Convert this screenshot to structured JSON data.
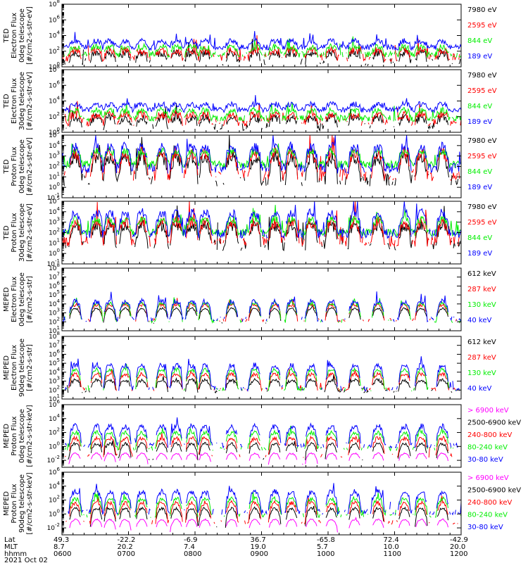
{
  "chart_data": {
    "type": "line",
    "title": "",
    "date_label": "2021 Oct 02",
    "footer": {
      "row_labels": [
        "Lat",
        "MLT",
        "hhmm"
      ],
      "columns": [
        {
          "lat": "49.3",
          "mlt": "8.7",
          "hhmm": "0600"
        },
        {
          "lat": "-22.2",
          "mlt": "20.2",
          "hhmm": "0700"
        },
        {
          "lat": "-6.9",
          "mlt": "7.4",
          "hhmm": "0800"
        },
        {
          "lat": "36.7",
          "mlt": "19.0",
          "hhmm": "0900"
        },
        {
          "lat": "-65.8",
          "mlt": "5.7",
          "hhmm": "1000"
        },
        {
          "lat": "72.4",
          "mlt": "10.0",
          "hhmm": "1100"
        },
        {
          "lat": "-42.9",
          "mlt": "20.0",
          "hhmm": "1200"
        }
      ]
    },
    "x_range_hours": [
      6.0,
      12.0
    ],
    "colors": {
      "black": "#000000",
      "red": "#ff0000",
      "green": "#00ee00",
      "blue": "#0000ff",
      "magenta": "#ff00ff"
    },
    "passes": [
      6.2,
      6.52,
      6.72,
      6.95,
      7.2,
      7.5,
      7.72,
      7.95,
      8.15,
      8.55,
      8.9,
      9.2,
      9.45,
      9.75,
      10.05,
      10.4,
      10.75,
      11.15,
      11.4,
      11.72
    ],
    "panels": [
      {
        "ylabel": [
          "TED",
          "Electron Flux",
          "0deg telescope",
          "[#/cm2-s-str-eV]"
        ],
        "ylog": [
          0,
          8
        ],
        "ticks": [
          0,
          2,
          4,
          6,
          8
        ],
        "legend": [
          {
            "label": "7980 eV",
            "color": "black"
          },
          {
            "label": "2595 eV",
            "color": "red"
          },
          {
            "label": "844 eV",
            "color": "green"
          },
          {
            "label": "189 eV",
            "color": "blue"
          }
        ],
        "series": [
          {
            "name": "7980 eV",
            "color": "black",
            "base": 0.6,
            "peak": 1.8,
            "noise": 0.5,
            "sparse": 0.65
          },
          {
            "name": "2595 eV",
            "color": "red",
            "base": 1.2,
            "peak": 2.1,
            "noise": 0.5,
            "sparse": 0.4
          },
          {
            "name": "844 eV",
            "color": "green",
            "base": 1.6,
            "peak": 2.6,
            "noise": 0.4,
            "sparse": 0.2
          },
          {
            "name": "189 eV",
            "color": "blue",
            "base": 2.5,
            "peak": 3.3,
            "noise": 0.35,
            "sparse": 0.0
          }
        ]
      },
      {
        "ylabel": [
          "TED",
          "Electron Flux",
          "30deg telescope",
          "[#/cm2-s-str-eV]"
        ],
        "ylog": [
          0,
          8
        ],
        "ticks": [
          0,
          2,
          4,
          6,
          8
        ],
        "legend": [
          {
            "label": "7980 eV",
            "color": "black"
          },
          {
            "label": "2595 eV",
            "color": "red"
          },
          {
            "label": "844 eV",
            "color": "green"
          },
          {
            "label": "189 eV",
            "color": "blue"
          }
        ],
        "series": [
          {
            "name": "7980 eV",
            "color": "black",
            "base": 0.7,
            "peak": 1.9,
            "noise": 0.5,
            "sparse": 0.55
          },
          {
            "name": "2595 eV",
            "color": "red",
            "base": 1.3,
            "peak": 2.3,
            "noise": 0.5,
            "sparse": 0.35
          },
          {
            "name": "844 eV",
            "color": "green",
            "base": 1.8,
            "peak": 2.8,
            "noise": 0.4,
            "sparse": 0.15
          },
          {
            "name": "189 eV",
            "color": "blue",
            "base": 2.9,
            "peak": 3.6,
            "noise": 0.35,
            "sparse": 0.0
          }
        ]
      },
      {
        "ylabel": [
          "TED",
          "Proton Flux",
          "0deg telescope",
          "[#/cm2-s-str-eV]"
        ],
        "ylog": [
          -1,
          5
        ],
        "ticks": [
          -1,
          0,
          1,
          2,
          3,
          4,
          5
        ],
        "legend": [
          {
            "label": "7980 eV",
            "color": "black"
          },
          {
            "label": "2595 eV",
            "color": "red"
          },
          {
            "label": "844 eV",
            "color": "green"
          },
          {
            "label": "189 eV",
            "color": "blue"
          }
        ],
        "series": [
          {
            "name": "7980 eV",
            "color": "black",
            "base": 0.7,
            "peak": 2.9,
            "noise": 0.6,
            "sparse": 0.5
          },
          {
            "name": "2595 eV",
            "color": "red",
            "base": 1.2,
            "peak": 3.3,
            "noise": 0.6,
            "sparse": 0.35
          },
          {
            "name": "844 eV",
            "color": "green",
            "base": 2.2,
            "peak": 3.5,
            "noise": 0.35,
            "sparse": 0.0
          },
          {
            "name": "189 eV",
            "color": "blue",
            "base": 1.8,
            "peak": 3.9,
            "noise": 0.5,
            "sparse": 0.1
          }
        ]
      },
      {
        "ylabel": [
          "TED",
          "Proton Flux",
          "30deg telescope",
          "[#/cm2-s-str-eV]"
        ],
        "ylog": [
          -1,
          5
        ],
        "ticks": [
          -1,
          0,
          1,
          2,
          3,
          4,
          5
        ],
        "legend": [
          {
            "label": "7980 eV",
            "color": "black"
          },
          {
            "label": "2595 eV",
            "color": "red"
          },
          {
            "label": "844 eV",
            "color": "green"
          },
          {
            "label": "189 eV",
            "color": "blue"
          }
        ],
        "series": [
          {
            "name": "7980 eV",
            "color": "black",
            "base": 0.8,
            "peak": 2.7,
            "noise": 0.55,
            "sparse": 0.45
          },
          {
            "name": "2595 eV",
            "color": "red",
            "base": 1.2,
            "peak": 3.0,
            "noise": 0.55,
            "sparse": 0.3
          },
          {
            "name": "844 eV",
            "color": "green",
            "base": 2.0,
            "peak": 3.3,
            "noise": 0.35,
            "sparse": 0.0
          },
          {
            "name": "189 eV",
            "color": "blue",
            "base": 1.9,
            "peak": 3.9,
            "noise": 0.45,
            "sparse": 0.1
          }
        ]
      },
      {
        "ylabel": [
          "MEPED",
          "Electron Flux",
          "0deg telescope",
          "[#/cm2-s-str]"
        ],
        "ylog": [
          1,
          8
        ],
        "ticks": [
          1,
          2,
          3,
          4,
          5,
          6,
          7,
          8
        ],
        "legend": [
          {
            "label": "612 keV",
            "color": "black"
          },
          {
            "label": "287 keV",
            "color": "red"
          },
          {
            "label": "130 keV",
            "color": "green"
          },
          {
            "label": "40 keV",
            "color": "blue"
          }
        ],
        "series": [
          {
            "name": "612 keV",
            "color": "black",
            "base": 1.9,
            "peak": 3.5,
            "noise": 0.1,
            "sparse": 0.85
          },
          {
            "name": "287 keV",
            "color": "red",
            "base": 2.2,
            "peak": 3.9,
            "noise": 0.2,
            "sparse": 0.6
          },
          {
            "name": "130 keV",
            "color": "green",
            "base": 2.1,
            "peak": 4.1,
            "noise": 0.2,
            "sparse": 0.6
          },
          {
            "name": "40 keV",
            "color": "blue",
            "base": 2.3,
            "peak": 4.3,
            "noise": 0.3,
            "sparse": 0.5
          }
        ]
      },
      {
        "ylabel": [
          "MEPED",
          "Electron Flux",
          "90deg telescope",
          "[#/cm2-s-str]"
        ],
        "ylog": [
          1,
          8
        ],
        "ticks": [
          1,
          2,
          3,
          4,
          5,
          6,
          7,
          8
        ],
        "legend": [
          {
            "label": "612 keV",
            "color": "black"
          },
          {
            "label": "287 keV",
            "color": "red"
          },
          {
            "label": "130 keV",
            "color": "green"
          },
          {
            "label": "40 keV",
            "color": "blue"
          }
        ],
        "series": [
          {
            "name": "612 keV",
            "color": "black",
            "base": 1.9,
            "peak": 3.1,
            "noise": 0.2,
            "sparse": 0.6
          },
          {
            "name": "287 keV",
            "color": "red",
            "base": 2.1,
            "peak": 3.8,
            "noise": 0.2,
            "sparse": 0.5
          },
          {
            "name": "130 keV",
            "color": "green",
            "base": 2.1,
            "peak": 4.3,
            "noise": 0.2,
            "sparse": 0.5
          },
          {
            "name": "40 keV",
            "color": "blue",
            "base": 2.2,
            "peak": 4.8,
            "noise": 0.3,
            "sparse": 0.5
          }
        ]
      },
      {
        "ylabel": [
          "MEPED",
          "Proton Flux",
          "0deg telescope",
          "[#/cm2-s-str-keV]"
        ],
        "ylog": [
          -3,
          6
        ],
        "ticks": [
          -2,
          0,
          2,
          4,
          6
        ],
        "legend": [
          {
            "label": "> 6900 keV",
            "color": "magenta"
          },
          {
            "label": "2500-6900 keV",
            "color": "black"
          },
          {
            "label": "240-800 keV",
            "color": "red"
          },
          {
            "label": "80-240 keV",
            "color": "green"
          },
          {
            "label": "30-80 keV",
            "color": "blue"
          }
        ],
        "series": [
          {
            "name": "> 6900 keV",
            "color": "magenta",
            "base": -2.6,
            "peak": -1.0,
            "noise": 0.1,
            "sparse": 0.95
          },
          {
            "name": "2500-6900 keV",
            "color": "black",
            "base": -1.8,
            "peak": 0.4,
            "noise": 0.2,
            "sparse": 0.85
          },
          {
            "name": "240-800 keV",
            "color": "red",
            "base": -1.3,
            "peak": 1.2,
            "noise": 0.3,
            "sparse": 0.7
          },
          {
            "name": "80-240 keV",
            "color": "green",
            "base": -0.3,
            "peak": 2.0,
            "noise": 0.3,
            "sparse": 0.55
          },
          {
            "name": "30-80 keV",
            "color": "blue",
            "base": 0.2,
            "peak": 2.9,
            "noise": 0.4,
            "sparse": 0.45
          }
        ]
      },
      {
        "ylabel": [
          "MEPED",
          "Proton Flux",
          "90deg telescope",
          "[#/cm2-s-str-keV]"
        ],
        "ylog": [
          -3,
          6
        ],
        "ticks": [
          -2,
          0,
          2,
          4,
          6
        ],
        "legend": [
          {
            "label": "> 6900 keV",
            "color": "magenta"
          },
          {
            "label": "2500-6900 keV",
            "color": "black"
          },
          {
            "label": "240-800 keV",
            "color": "red"
          },
          {
            "label": "80-240 keV",
            "color": "green"
          },
          {
            "label": "30-80 keV",
            "color": "blue"
          }
        ],
        "series": [
          {
            "name": "> 6900 keV",
            "color": "magenta",
            "base": -2.6,
            "peak": -0.8,
            "noise": 0.1,
            "sparse": 0.9
          },
          {
            "name": "2500-6900 keV",
            "color": "black",
            "base": -1.8,
            "peak": 0.8,
            "noise": 0.2,
            "sparse": 0.8
          },
          {
            "name": "240-800 keV",
            "color": "red",
            "base": -1.2,
            "peak": 1.6,
            "noise": 0.3,
            "sparse": 0.65
          },
          {
            "name": "80-240 keV",
            "color": "green",
            "base": -0.2,
            "peak": 2.2,
            "noise": 0.3,
            "sparse": 0.5
          },
          {
            "name": "30-80 keV",
            "color": "blue",
            "base": 0.3,
            "peak": 3.2,
            "noise": 0.4,
            "sparse": 0.4
          }
        ]
      }
    ]
  }
}
